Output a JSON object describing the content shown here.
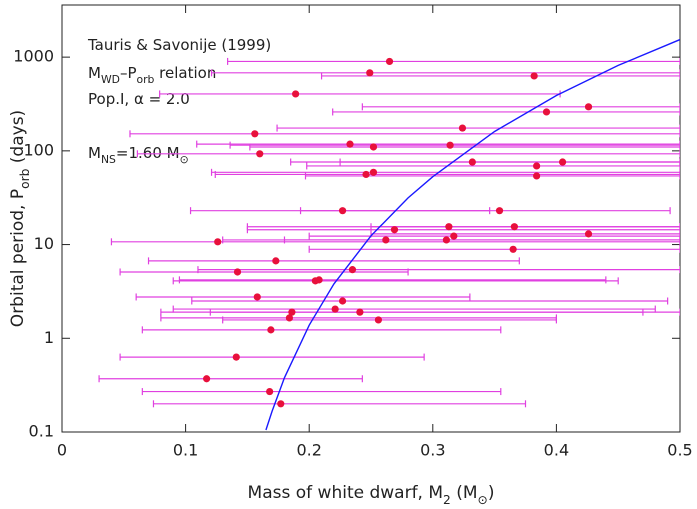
{
  "chart_data": {
    "type": "scatter",
    "xlabel": [
      "Mass of white dwarf, M",
      "2",
      "  (M",
      "⊙",
      ")"
    ],
    "ylabel": [
      "Orbital period, P",
      "orb",
      "  (days)"
    ],
    "annotations": [
      [
        "Tauris & Savonije (1999)"
      ],
      [
        "M",
        "WD",
        "–P",
        "orb",
        " relation"
      ],
      [
        "Pop.I, α = 2.0"
      ],
      [
        "M",
        "NS",
        "=1.60 M",
        "⊙",
        ""
      ]
    ],
    "xlim": [
      0,
      0.5
    ],
    "ylim": [
      0.1,
      3600
    ],
    "log_y": true,
    "xticks": [
      0,
      0.1,
      0.2,
      0.3,
      0.4,
      0.5
    ],
    "yticks": [
      0.1,
      1,
      10,
      100,
      1000
    ],
    "series": [
      {
        "type": "errorbar",
        "color": "#e8103c",
        "bar_color": "#e040e0",
        "x": [
          0.265,
          0.249,
          0.382,
          0.189,
          0.426,
          0.392,
          0.324,
          0.156,
          0.233,
          0.252,
          0.314,
          0.16,
          0.332,
          0.405,
          0.384,
          0.252,
          0.246,
          0.384,
          0.227,
          0.354,
          0.313,
          0.366,
          0.269,
          0.317,
          0.426,
          0.262,
          0.311,
          0.126,
          0.365,
          0.173,
          0.235,
          0.142,
          0.208,
          0.205,
          0.158,
          0.227,
          0.221,
          0.186,
          0.241,
          0.184,
          0.256,
          0.169,
          0.141,
          0.117,
          0.168,
          0.177
        ],
        "y": [
          900,
          680,
          630,
          405,
          295,
          260,
          175,
          152,
          118,
          110,
          115,
          93,
          76,
          76,
          69,
          59,
          56,
          54,
          23,
          23,
          15.5,
          15.5,
          14.4,
          12.3,
          13,
          11.2,
          11.2,
          10.7,
          8.9,
          6.7,
          5.4,
          5.1,
          4.2,
          4.1,
          2.76,
          2.5,
          2.05,
          1.9,
          1.9,
          1.65,
          1.57,
          1.23,
          0.63,
          0.37,
          0.27,
          0.2
        ],
        "x_low": [
          0.134,
          0.121,
          0.21,
          0.079,
          0.243,
          0.219,
          0.174,
          0.055,
          0.109,
          0.152,
          0.136,
          0.061,
          0.185,
          0.225,
          0.198,
          0.121,
          0.124,
          0.197,
          0.104,
          0.193,
          0.15,
          0.25,
          0.15,
          0.2,
          0.25,
          0.13,
          0.18,
          0.04,
          0.2,
          0.07,
          0.11,
          0.047,
          0.095,
          0.09,
          0.06,
          0.105,
          0.09,
          0.08,
          0.12,
          0.08,
          0.13,
          0.065,
          0.047,
          0.03,
          0.065,
          0.074
        ],
        "x_high": [
          0.5,
          0.5,
          0.5,
          0.403,
          0.5,
          0.5,
          0.5,
          0.5,
          0.5,
          0.5,
          0.5,
          0.5,
          0.5,
          0.5,
          0.5,
          0.5,
          0.5,
          0.5,
          0.346,
          0.492,
          0.5,
          0.5,
          0.5,
          0.5,
          0.5,
          0.5,
          0.5,
          0.5,
          0.5,
          0.37,
          0.5,
          0.28,
          0.44,
          0.45,
          0.33,
          0.49,
          0.48,
          0.47,
          0.5,
          0.4,
          0.4,
          0.355,
          0.293,
          0.243,
          0.355,
          0.375
        ]
      },
      {
        "type": "line",
        "color": "#1a1aff",
        "x": [
          0.165,
          0.17,
          0.18,
          0.2,
          0.22,
          0.25,
          0.28,
          0.3,
          0.35,
          0.4,
          0.45,
          0.5
        ],
        "y": [
          0.105,
          0.167,
          0.38,
          1.38,
          3.8,
          12.4,
          31.5,
          53,
          161,
          390,
          816,
          1540
        ]
      }
    ]
  }
}
